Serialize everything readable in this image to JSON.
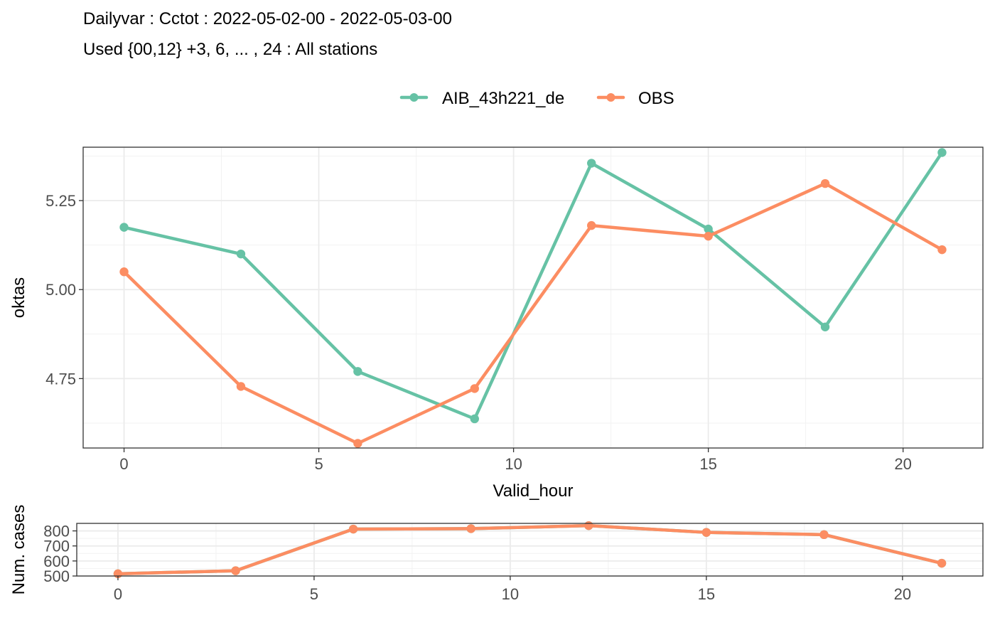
{
  "title": {
    "line1": "Dailyvar : Cctot : 2022-05-02-00 - 2022-05-03-00",
    "line2": "Used {00,12} +3, 6, ... , 24 : All stations"
  },
  "legend": {
    "position": "top",
    "items": [
      {
        "label": "AIB_43h221_de",
        "color": "#66c2a5"
      },
      {
        "label": "OBS",
        "color": "#fc8d62"
      }
    ]
  },
  "chart_data": [
    {
      "type": "line",
      "xlabel": "Valid_hour",
      "ylabel": "oktas",
      "xlim": [
        -1.05,
        22.05
      ],
      "ylim": [
        4.555,
        5.4
      ],
      "x_ticks": [
        0,
        5,
        10,
        15,
        20
      ],
      "y_ticks": [
        4.75,
        5.0,
        5.25
      ],
      "y_tick_labels": [
        "4.75",
        "5.00",
        "5.25"
      ],
      "grid": true,
      "x": [
        0,
        3,
        6,
        9,
        12,
        15,
        18,
        21
      ],
      "series": [
        {
          "name": "AIB_43h221_de",
          "color": "#66c2a5",
          "values": [
            5.175,
            5.1,
            4.77,
            4.637,
            5.355,
            5.17,
            4.895,
            5.385
          ]
        },
        {
          "name": "OBS",
          "color": "#fc8d62",
          "values": [
            5.05,
            4.728,
            4.568,
            4.722,
            5.18,
            5.15,
            5.298,
            5.112
          ]
        }
      ]
    },
    {
      "type": "line",
      "xlabel": "",
      "ylabel": "Num. cases",
      "xlim": [
        -1.05,
        22.05
      ],
      "ylim": [
        500,
        850
      ],
      "x_ticks": [
        0,
        5,
        10,
        15,
        20
      ],
      "y_ticks": [
        500,
        600,
        700,
        800
      ],
      "y_tick_labels": [
        "500",
        "600",
        "700",
        "800"
      ],
      "grid": true,
      "x": [
        0,
        3,
        6,
        9,
        12,
        15,
        18,
        21
      ],
      "series": [
        {
          "name": "AIB_43h221_de",
          "color": "#66c2a5",
          "values": [
            515,
            535,
            812,
            815,
            835,
            790,
            775,
            585
          ]
        },
        {
          "name": "OBS",
          "color": "#fc8d62",
          "values": [
            515,
            535,
            812,
            815,
            835,
            790,
            775,
            585
          ]
        }
      ]
    }
  ]
}
